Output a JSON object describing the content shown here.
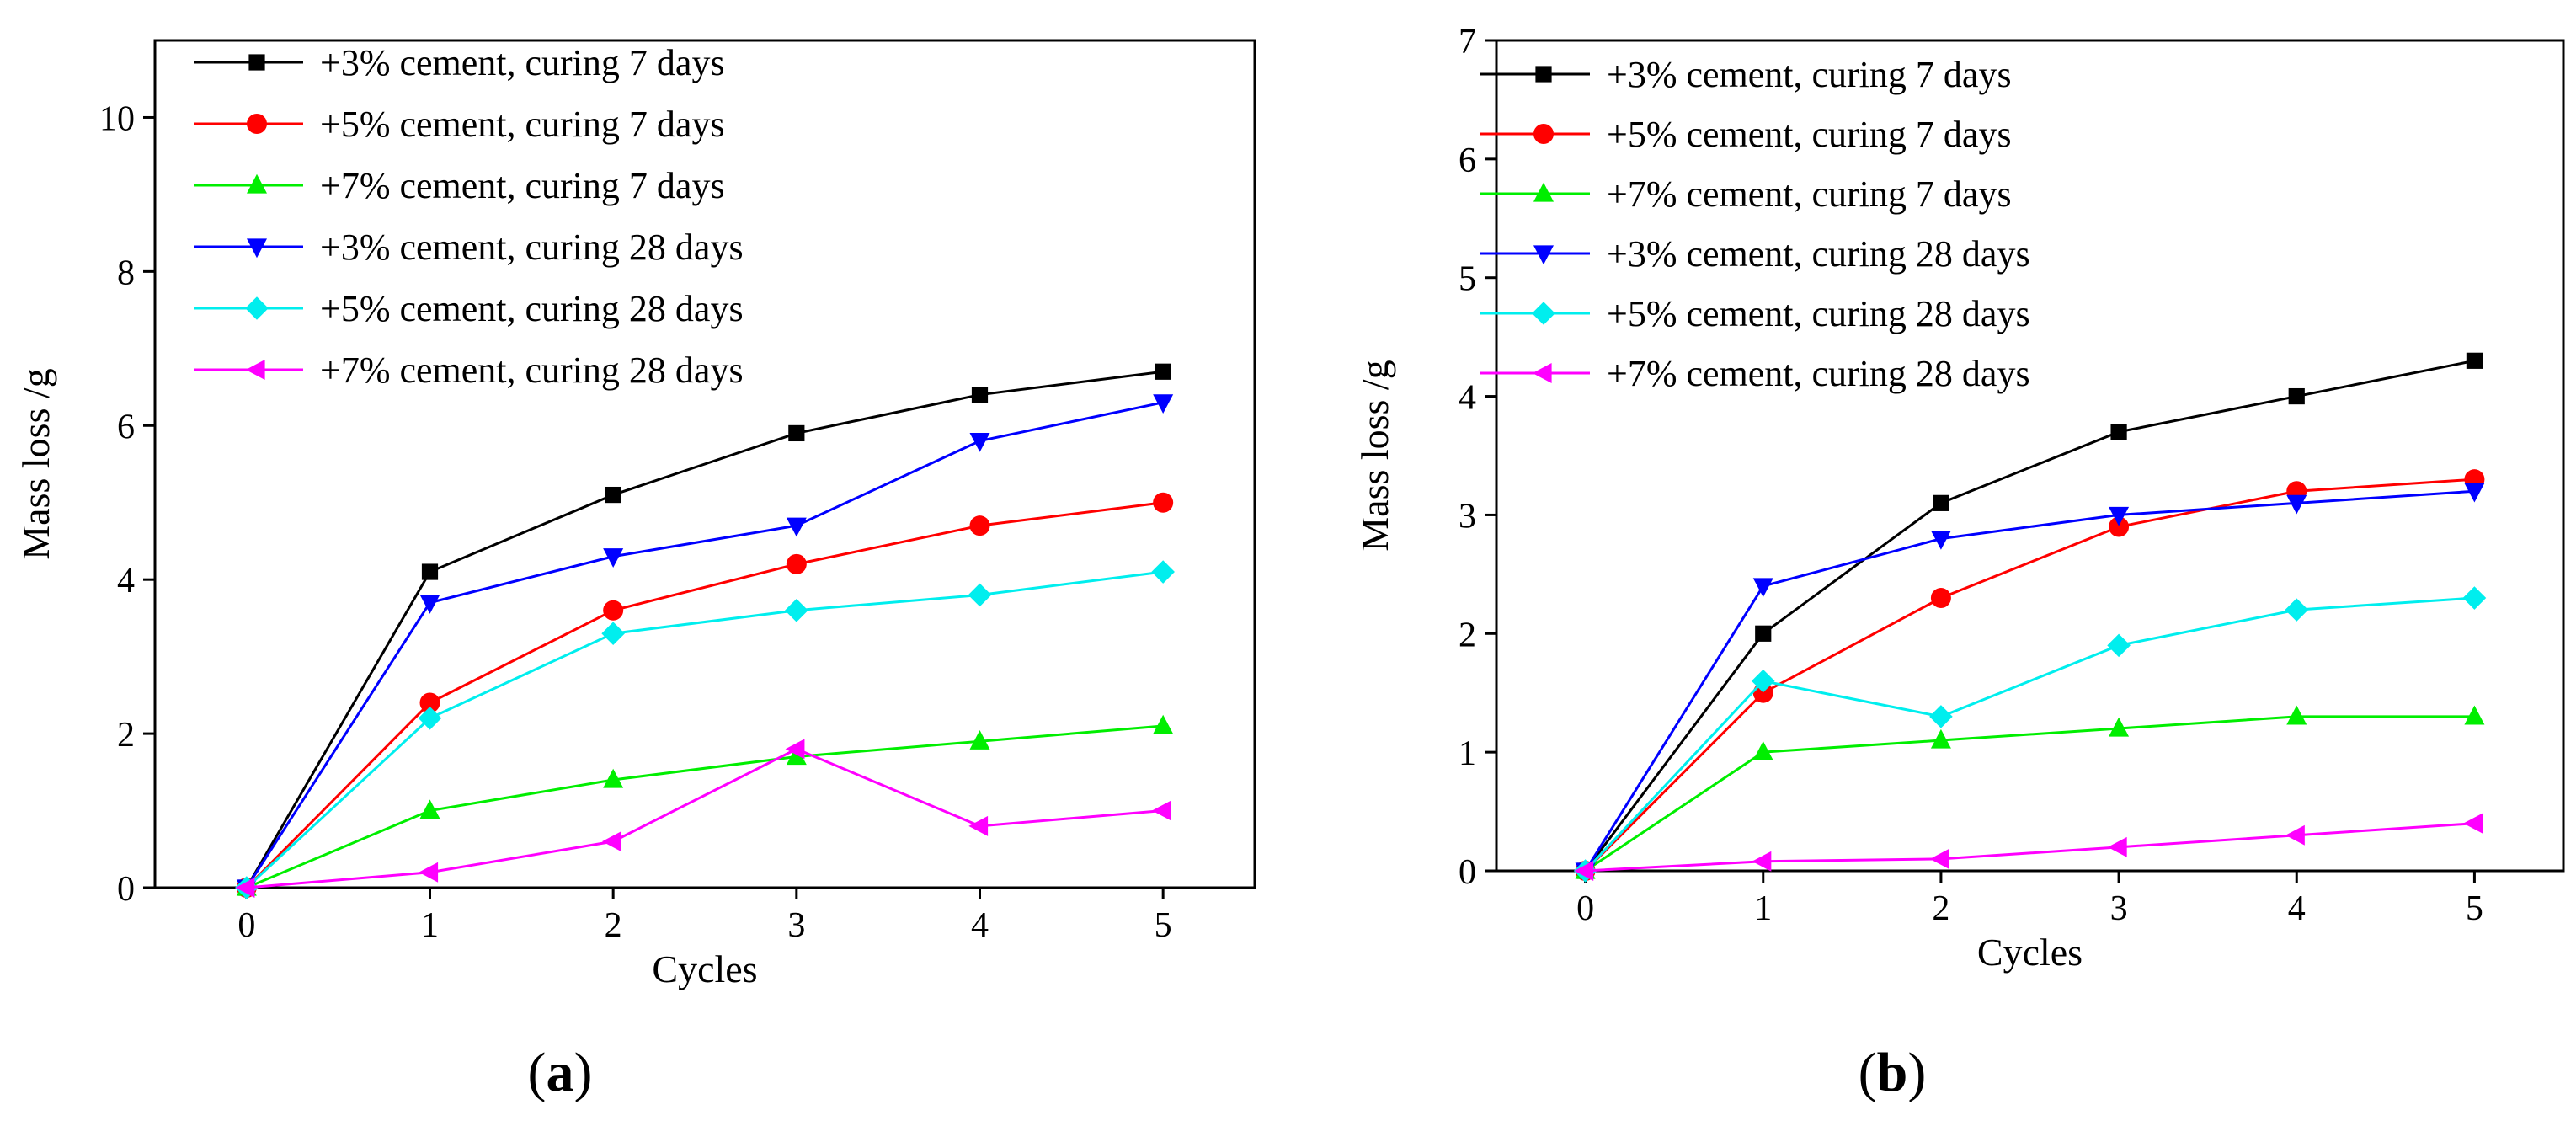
{
  "chart_data": [
    {
      "type": "line",
      "panel_label": "(a)",
      "panel_letter": "a",
      "xlabel": "Cycles",
      "ylabel": "Mass loss /g",
      "xlim": [
        -0.5,
        5.5
      ],
      "ylim": [
        0,
        11
      ],
      "xticks": [
        0,
        1,
        2,
        3,
        4,
        5
      ],
      "yticks": [
        0,
        2,
        4,
        6,
        8,
        10
      ],
      "x": [
        0,
        1,
        2,
        3,
        4,
        5
      ],
      "legend_position": "top-left",
      "series": [
        {
          "name": "+3% cement, curing 7 days",
          "color": "#000000",
          "marker": "square",
          "values": [
            0,
            4.1,
            5.1,
            5.9,
            6.4,
            6.7
          ]
        },
        {
          "name": "+5% cement, curing 7 days",
          "color": "#ff0000",
          "marker": "circle",
          "values": [
            0,
            2.4,
            3.6,
            4.2,
            4.7,
            5.0
          ]
        },
        {
          "name": "+7% cement, curing 7 days",
          "color": "#00ee00",
          "marker": "triangle-up",
          "values": [
            0,
            1.0,
            1.4,
            1.7,
            1.9,
            2.1
          ]
        },
        {
          "name": "+3% cement, curing 28 days",
          "color": "#0000ff",
          "marker": "triangle-down",
          "values": [
            0,
            3.7,
            4.3,
            4.7,
            5.8,
            6.3
          ]
        },
        {
          "name": "+5% cement, curing 28 days",
          "color": "#00eeee",
          "marker": "diamond",
          "values": [
            0,
            2.2,
            3.3,
            3.6,
            3.8,
            4.1
          ]
        },
        {
          "name": "+7% cement, curing 28 days",
          "color": "#ff00ff",
          "marker": "triangle-left",
          "values": [
            0,
            0.2,
            0.6,
            1.8,
            0.8,
            1.0
          ]
        }
      ]
    },
    {
      "type": "line",
      "panel_label": "(b)",
      "panel_letter": "b",
      "xlabel": "Cycles",
      "ylabel": "Mass loss /g",
      "xlim": [
        -0.5,
        5.5
      ],
      "ylim": [
        0,
        7
      ],
      "xticks": [
        0,
        1,
        2,
        3,
        4,
        5
      ],
      "yticks": [
        0,
        1,
        2,
        3,
        4,
        5,
        6,
        7
      ],
      "x": [
        0,
        1,
        2,
        3,
        4,
        5
      ],
      "legend_position": "top-left",
      "series": [
        {
          "name": "+3% cement, curing 7 days",
          "color": "#000000",
          "marker": "square",
          "values": [
            0,
            2.0,
            3.1,
            3.7,
            4.0,
            4.3
          ]
        },
        {
          "name": "+5% cement, curing 7 days",
          "color": "#ff0000",
          "marker": "circle",
          "values": [
            0,
            1.5,
            2.3,
            2.9,
            3.2,
            3.3
          ]
        },
        {
          "name": "+7% cement, curing 7 days",
          "color": "#00ee00",
          "marker": "triangle-up",
          "values": [
            0,
            1.0,
            1.1,
            1.2,
            1.3,
            1.3
          ]
        },
        {
          "name": "+3% cement, curing 28 days",
          "color": "#0000ff",
          "marker": "triangle-down",
          "values": [
            0,
            2.4,
            2.8,
            3.0,
            3.1,
            3.2
          ]
        },
        {
          "name": "+5% cement, curing 28 days",
          "color": "#00eeee",
          "marker": "diamond",
          "values": [
            0,
            1.6,
            1.3,
            1.9,
            2.2,
            2.3
          ]
        },
        {
          "name": "+7% cement, curing 28 days",
          "color": "#ff00ff",
          "marker": "triangle-left",
          "values": [
            0,
            0.08,
            0.1,
            0.2,
            0.3,
            0.4
          ]
        }
      ]
    }
  ]
}
